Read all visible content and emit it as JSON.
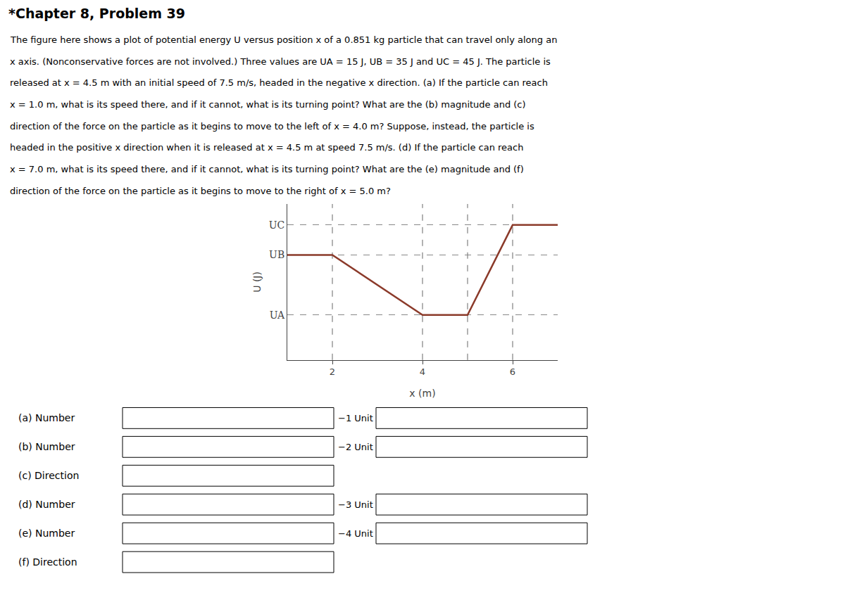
{
  "chart_data": {
    "type": "line",
    "title": "*Chapter 8, Problem 39",
    "subtitle": [
      "The figure here shows a plot of potential energy U versus position x of a 0.851 kg particle that can travel only along an",
      "x axis. (Nonconservative forces are not involved.) Three values are UA = 15 J, UB = 35 J and UC = 45 J. The particle is",
      "released at x = 4.5 m with an initial speed of 7.5 m/s, headed in the negative x direction. (a) If the particle can reach",
      "x = 1.0 m, what is its speed there, and if it cannot, what is its turning point? What are the (b) magnitude and (c)",
      "direction of the force on the particle as it begins to move to the left of x = 4.0 m? Suppose, instead, the particle is",
      "headed in the positive x direction when it is released at x = 4.5 m at speed 7.5 m/s. (d) If the particle can reach",
      "x = 7.0 m, what is its speed there, and if it cannot, what is its turning point? What are the (e) magnitude and (f)",
      "direction of the force on the particle as it begins to move to the right of x = 5.0 m?"
    ],
    "x": [
      1.0,
      2.0,
      4.0,
      5.0,
      6.0,
      7.0
    ],
    "values": [
      35,
      35,
      15,
      15,
      45,
      45
    ],
    "color": "#8B3A2A",
    "xlabel": "x (m)",
    "ylabel": "U (J)",
    "xlim": [
      1.0,
      7.0
    ],
    "xticks": [
      2,
      4,
      6
    ],
    "ylim": [
      0,
      52
    ],
    "yticks": [
      {
        "value": 15,
        "label": "UA"
      },
      {
        "value": 35,
        "label": "UB"
      },
      {
        "value": 45,
        "label": "UC"
      }
    ],
    "vlines": [
      2,
      4,
      5,
      6
    ],
    "grid": true,
    "annotations": [
      [
        "(a) Number",
        "−1 Unit"
      ],
      [
        "(b) Number",
        "−2 Unit"
      ],
      [
        "(c) Direction"
      ],
      [
        "(d) Number",
        "−3 Unit"
      ],
      [
        "(e) Number",
        "−4 Unit"
      ],
      [
        "(f) Direction"
      ]
    ]
  }
}
